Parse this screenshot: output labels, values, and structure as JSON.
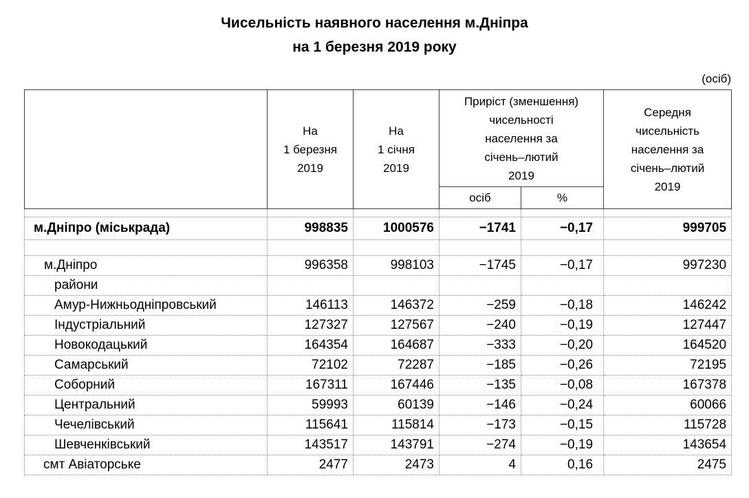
{
  "title": {
    "line1": "Чисельність наявного населення м.Дніпра",
    "line2": "на 1 березня 2019 року"
  },
  "unit_note": "(осіб)",
  "table": {
    "columns": [
      {
        "label": ""
      },
      {
        "label": "На\n1 березня\n2019"
      },
      {
        "label": "На\n1 січня\n2019"
      },
      {
        "label": "Приріст (зменшення)\nчисельності\nнаселення за\nсічень–лютий\n2019",
        "subcolumns": [
          "осіб",
          "%"
        ]
      },
      {
        "label": "Середня\nчисельність\nнаселення за\nсічень–лютий\n2019"
      }
    ],
    "rows": [
      {
        "name": "",
        "values": [
          "",
          "",
          "",
          "",
          ""
        ],
        "style": "spacer-thin",
        "indent": 0
      },
      {
        "name": "м.Дніпро (міськрада)",
        "values": [
          "998835",
          "1000576",
          "−1741",
          "−0,17",
          "999705"
        ],
        "style": "bold",
        "indent": 1
      },
      {
        "name": "",
        "values": [
          "",
          "",
          "",
          "",
          ""
        ],
        "style": "spacer",
        "indent": 0
      },
      {
        "name": "м.Дніпро",
        "values": [
          "996358",
          "998103",
          "−1745",
          "−0,17",
          "997230"
        ],
        "style": "normal",
        "indent": 2
      },
      {
        "name": "райони",
        "values": [
          "",
          "",
          "",
          "",
          ""
        ],
        "style": "normal",
        "indent": 3
      },
      {
        "name": "Амур-Нижньодніпровський",
        "values": [
          "146113",
          "146372",
          "−259",
          "−0,18",
          "146242"
        ],
        "style": "normal",
        "indent": 3
      },
      {
        "name": "Індустріальний",
        "values": [
          "127327",
          "127567",
          "−240",
          "−0,19",
          "127447"
        ],
        "style": "normal",
        "indent": 3
      },
      {
        "name": "Новокодацький",
        "values": [
          "164354",
          "164687",
          "−333",
          "−0,20",
          "164520"
        ],
        "style": "normal",
        "indent": 3
      },
      {
        "name": "Самарський",
        "values": [
          "72102",
          "72287",
          "−185",
          "−0,26",
          "72195"
        ],
        "style": "normal",
        "indent": 3
      },
      {
        "name": "Соборний",
        "values": [
          "167311",
          "167446",
          "−135",
          "−0,08",
          "167378"
        ],
        "style": "normal",
        "indent": 3
      },
      {
        "name": "Центральний",
        "values": [
          "59993",
          "60139",
          "−146",
          "−0,24",
          "60066"
        ],
        "style": "normal",
        "indent": 3
      },
      {
        "name": "Чечелівський",
        "values": [
          "115641",
          "115814",
          "−173",
          "−0,15",
          "115728"
        ],
        "style": "normal",
        "indent": 3
      },
      {
        "name": "Шевченківський",
        "values": [
          "143517",
          "143791",
          "−274",
          "−0,19",
          "143654"
        ],
        "style": "normal",
        "indent": 3
      },
      {
        "name": "смт Авіаторське",
        "values": [
          "2477",
          "2473",
          "4",
          "0,16",
          "2475"
        ],
        "style": "normal",
        "indent": 4
      }
    ]
  }
}
